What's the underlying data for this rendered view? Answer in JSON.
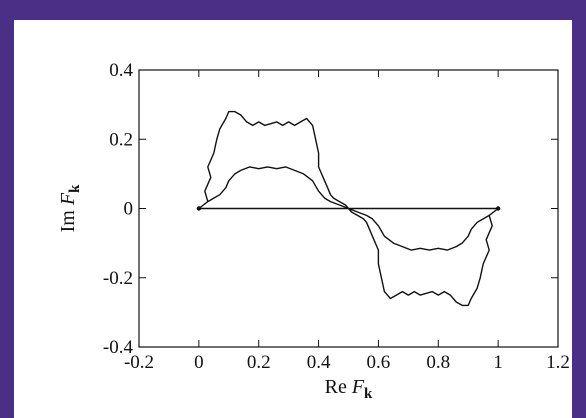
{
  "colors": {
    "border": "#4b2f86",
    "background": "#ffffff",
    "ink": "#111111"
  },
  "chart_data": {
    "type": "line",
    "title": "",
    "xlabel_main": "Re ",
    "xlabel_var": "F",
    "xlabel_sub": "k",
    "ylabel_main": "Im ",
    "ylabel_var": "F",
    "ylabel_sub": "k",
    "xlim": [
      -0.2,
      1.2
    ],
    "ylim": [
      -0.4,
      0.4
    ],
    "xticks": [
      -0.2,
      0,
      0.2,
      0.4,
      0.6,
      0.8,
      1,
      1.2
    ],
    "xtick_labels": [
      "-0.2",
      "0",
      "0.2",
      "0.4",
      "0.6",
      "0.8",
      "1",
      "1.2"
    ],
    "yticks": [
      -0.4,
      -0.2,
      0,
      0.2,
      0.4
    ],
    "ytick_labels": [
      "-0.4",
      "-0.2",
      "0",
      "0.2",
      "0.4"
    ],
    "grid": false,
    "legend": false,
    "series": [
      {
        "x": [
          0,
          0.5,
          1
        ],
        "y": [
          0,
          0,
          0
        ]
      },
      {
        "x": [
          0.0,
          0.03,
          0.02,
          0.04,
          0.03,
          0.05,
          0.06,
          0.07,
          0.09,
          0.1,
          0.12,
          0.14,
          0.16,
          0.18,
          0.2,
          0.22,
          0.24,
          0.26,
          0.28,
          0.3,
          0.32,
          0.34,
          0.36,
          0.38,
          0.39,
          0.4,
          0.4,
          0.41,
          0.42,
          0.43,
          0.44,
          0.45,
          0.47,
          0.49,
          0.5,
          0.47,
          0.44,
          0.42,
          0.4,
          0.38,
          0.35,
          0.32,
          0.29,
          0.26,
          0.23,
          0.2,
          0.17,
          0.14,
          0.12,
          0.1,
          0.09,
          0.07,
          0.05,
          0.03,
          0.0
        ],
        "y": [
          0.0,
          0.02,
          0.05,
          0.09,
          0.12,
          0.16,
          0.2,
          0.23,
          0.26,
          0.28,
          0.28,
          0.27,
          0.25,
          0.24,
          0.25,
          0.24,
          0.245,
          0.25,
          0.24,
          0.25,
          0.24,
          0.25,
          0.26,
          0.24,
          0.2,
          0.16,
          0.12,
          0.1,
          0.08,
          0.06,
          0.04,
          0.03,
          0.02,
          0.01,
          0.0,
          0.01,
          0.02,
          0.03,
          0.05,
          0.08,
          0.1,
          0.11,
          0.12,
          0.115,
          0.12,
          0.115,
          0.12,
          0.11,
          0.1,
          0.08,
          0.06,
          0.04,
          0.03,
          0.02,
          0.0
        ]
      },
      {
        "x": [
          1.0,
          0.97,
          0.98,
          0.96,
          0.97,
          0.95,
          0.94,
          0.93,
          0.91,
          0.9,
          0.88,
          0.86,
          0.84,
          0.82,
          0.8,
          0.78,
          0.76,
          0.74,
          0.72,
          0.7,
          0.68,
          0.66,
          0.64,
          0.62,
          0.61,
          0.6,
          0.6,
          0.59,
          0.58,
          0.57,
          0.56,
          0.55,
          0.53,
          0.51,
          0.5,
          0.53,
          0.56,
          0.58,
          0.6,
          0.62,
          0.65,
          0.68,
          0.71,
          0.74,
          0.77,
          0.8,
          0.83,
          0.86,
          0.88,
          0.9,
          0.91,
          0.93,
          0.95,
          0.97,
          1.0
        ],
        "y": [
          0.0,
          -0.02,
          -0.05,
          -0.09,
          -0.12,
          -0.16,
          -0.2,
          -0.23,
          -0.26,
          -0.28,
          -0.28,
          -0.27,
          -0.25,
          -0.24,
          -0.25,
          -0.24,
          -0.245,
          -0.25,
          -0.24,
          -0.25,
          -0.24,
          -0.25,
          -0.26,
          -0.24,
          -0.2,
          -0.16,
          -0.12,
          -0.1,
          -0.08,
          -0.06,
          -0.04,
          -0.03,
          -0.02,
          -0.01,
          0.0,
          -0.01,
          -0.02,
          -0.03,
          -0.05,
          -0.08,
          -0.1,
          -0.11,
          -0.12,
          -0.115,
          -0.12,
          -0.115,
          -0.12,
          -0.11,
          -0.1,
          -0.08,
          -0.06,
          -0.04,
          -0.03,
          -0.02,
          0.0
        ]
      }
    ]
  }
}
